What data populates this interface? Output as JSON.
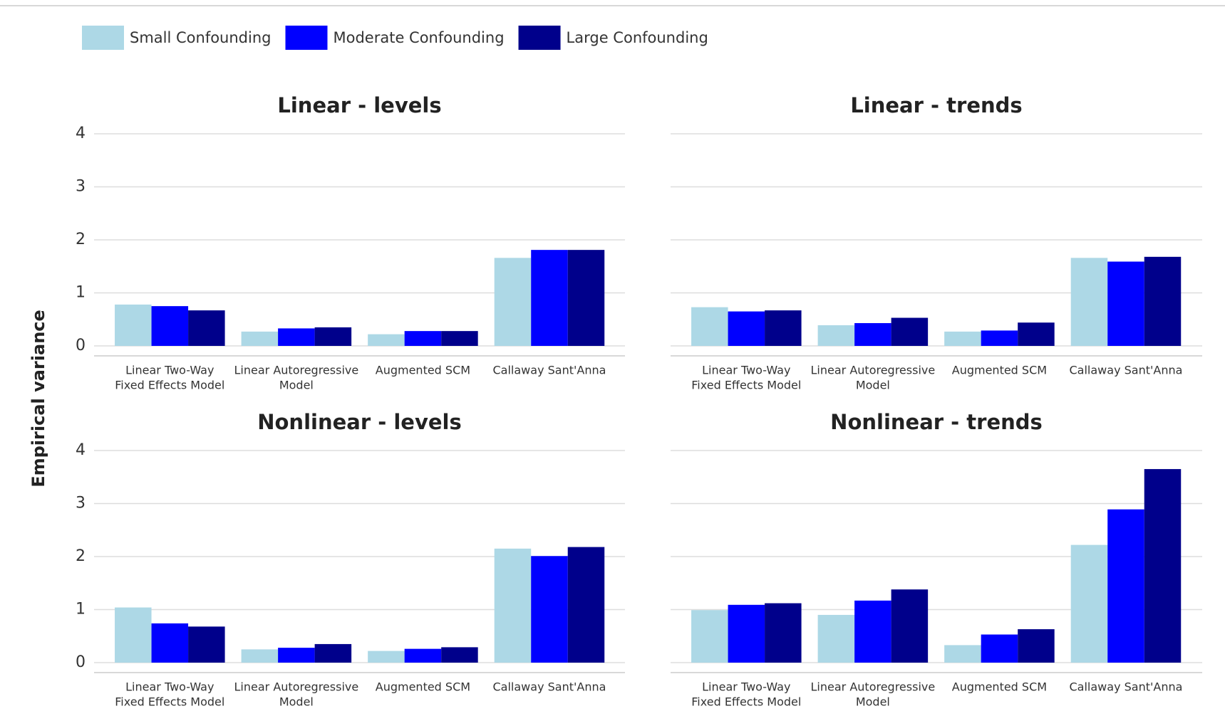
{
  "y_label": "Empirical variance",
  "legend": [
    {
      "name": "Small Confounding",
      "color": "#add8e6"
    },
    {
      "name": "Moderate Confounding",
      "color": "#0000ff"
    },
    {
      "name": "Large Confounding",
      "color": "#00008b"
    }
  ],
  "chart_data": [
    {
      "type": "bar",
      "title": "Linear - levels",
      "categories": [
        [
          "Linear Two-Way",
          "Fixed Effects Model"
        ],
        [
          "Linear Autoregressive",
          "Model"
        ],
        [
          "Augmented SCM"
        ],
        [
          "Callaway Sant'Anna"
        ]
      ],
      "series": [
        {
          "values": [
            0.78,
            0.27,
            0.22,
            1.66
          ]
        },
        {
          "values": [
            0.75,
            0.33,
            0.28,
            1.81
          ]
        },
        {
          "values": [
            0.67,
            0.35,
            0.28,
            1.81
          ]
        }
      ],
      "ylim": [
        0,
        4
      ],
      "yticks": [
        0,
        1,
        2,
        3,
        4
      ],
      "grid": true
    },
    {
      "type": "bar",
      "title": "Linear - trends",
      "categories": [
        [
          "Linear Two-Way",
          "Fixed Effects Model"
        ],
        [
          "Linear Autoregressive",
          "Model"
        ],
        [
          "Augmented SCM"
        ],
        [
          "Callaway Sant'Anna"
        ]
      ],
      "series": [
        {
          "values": [
            0.73,
            0.39,
            0.27,
            1.66
          ]
        },
        {
          "values": [
            0.65,
            0.43,
            0.29,
            1.59
          ]
        },
        {
          "values": [
            0.67,
            0.53,
            0.44,
            1.68
          ]
        }
      ],
      "ylim": [
        0,
        4
      ],
      "yticks": [
        0,
        1,
        2,
        3,
        4
      ],
      "grid": true
    },
    {
      "type": "bar",
      "title": "Nonlinear - levels",
      "categories": [
        [
          "Linear Two-Way",
          "Fixed Effects Model"
        ],
        [
          "Linear Autoregressive",
          "Model"
        ],
        [
          "Augmented SCM"
        ],
        [
          "Callaway Sant'Anna"
        ]
      ],
      "series": [
        {
          "values": [
            1.04,
            0.25,
            0.22,
            2.15
          ]
        },
        {
          "values": [
            0.74,
            0.28,
            0.26,
            2.01
          ]
        },
        {
          "values": [
            0.68,
            0.35,
            0.29,
            2.18
          ]
        }
      ],
      "ylim": [
        0,
        4
      ],
      "yticks": [
        0,
        1,
        2,
        3,
        4
      ],
      "grid": true
    },
    {
      "type": "bar",
      "title": "Nonlinear - trends",
      "categories": [
        [
          "Linear Two-Way",
          "Fixed Effects Model"
        ],
        [
          "Linear Autoregressive",
          "Model"
        ],
        [
          "Augmented SCM"
        ],
        [
          "Callaway Sant'Anna"
        ]
      ],
      "series": [
        {
          "values": [
            0.99,
            0.9,
            0.33,
            2.22
          ]
        },
        {
          "values": [
            1.09,
            1.17,
            0.53,
            2.89
          ]
        },
        {
          "values": [
            1.12,
            1.38,
            0.63,
            3.65
          ]
        }
      ],
      "ylim": [
        0,
        4
      ],
      "yticks": [
        0,
        1,
        2,
        3,
        4
      ],
      "grid": true
    }
  ]
}
